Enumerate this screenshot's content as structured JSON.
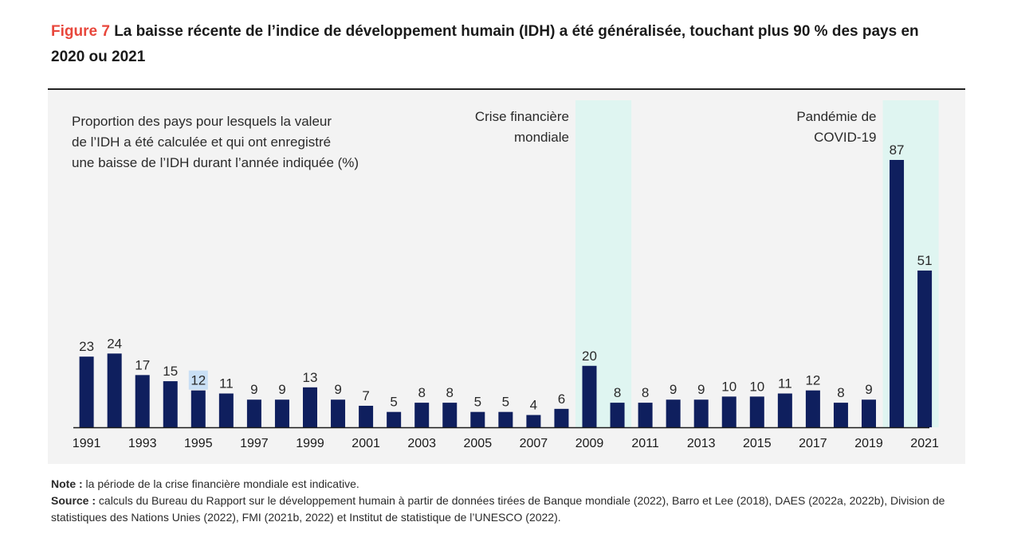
{
  "header": {
    "figure_label": "Figure 7",
    "title": "La baisse récente de l’indice de développement humain (IDH) a été généralisée, touchant plus 90 % des pays en 2020 ou 2021"
  },
  "colors": {
    "accent": "#e8473c",
    "bar": "#0f1f5e",
    "highlight_band": "#dff5f1",
    "panel_bg": "#f3f3f3",
    "label_highlight": "#c9dff5"
  },
  "chart_data": {
    "type": "bar",
    "ylabel_lines": [
      "Proportion des pays pour lesquels la valeur",
      "de l’IDH a été calculée et qui ont enregistré",
      "une baisse de l’IDH durant l’année indiquée (%)"
    ],
    "categories": [
      1991,
      1992,
      1993,
      1994,
      1995,
      1996,
      1997,
      1998,
      1999,
      2000,
      2001,
      2002,
      2003,
      2004,
      2005,
      2006,
      2007,
      2008,
      2009,
      2010,
      2011,
      2012,
      2013,
      2014,
      2015,
      2016,
      2017,
      2018,
      2019,
      2020,
      2021
    ],
    "tick_labels": [
      "1991",
      "1993",
      "1995",
      "1997",
      "1999",
      "2001",
      "2003",
      "2005",
      "2007",
      "2009",
      "2011",
      "2013",
      "2015",
      "2017",
      "2019",
      "2021"
    ],
    "values": [
      23,
      24,
      17,
      15,
      12,
      11,
      9,
      9,
      13,
      9,
      7,
      5,
      8,
      8,
      5,
      5,
      4,
      6,
      20,
      8,
      8,
      9,
      9,
      10,
      10,
      11,
      12,
      8,
      9,
      87,
      51
    ],
    "highlighted_value_index": 4,
    "ylim": [
      0,
      100
    ],
    "bands": [
      {
        "start": 2009,
        "end": 2010,
        "label_lines": [
          "Crise financière",
          "mondiale"
        ]
      },
      {
        "start": 2020,
        "end": 2021,
        "label_lines": [
          "Pandémie de",
          "COVID-19"
        ]
      }
    ],
    "grid": false,
    "legend": "none"
  },
  "footer": {
    "note_label": "Note :",
    "note_text": " la période de la crise financière mondiale est indicative.",
    "source_label": "Source :",
    "source_text": " calculs du Bureau du Rapport sur le développement humain à partir de données tirées de Banque mondiale (2022), Barro et Lee (2018), DAES (2022a, 2022b), Division de statistiques des Nations Unies (2022), FMI (2021b, 2022) et Institut de statistique de l’UNESCO (2022)."
  }
}
